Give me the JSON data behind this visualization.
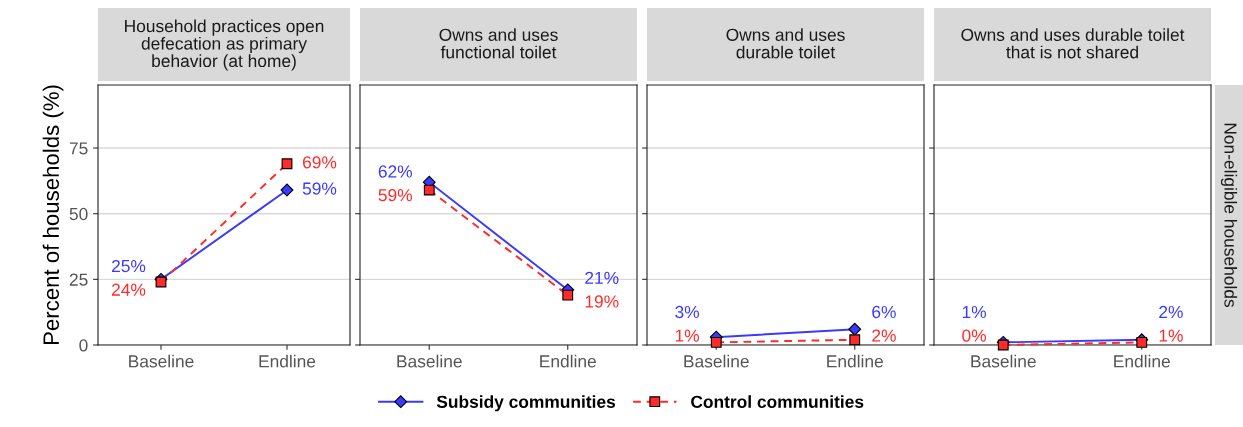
{
  "chart_data": [
    {
      "type": "line",
      "title": "Household practices open\ndefecation as primary\nbehavior (at home)",
      "ylabel": "Percent of households (%)",
      "categories": [
        "Baseline",
        "Endline"
      ],
      "ylim": [
        0,
        99
      ],
      "yticks": [
        0,
        25,
        50,
        75
      ],
      "grid": "y",
      "legend": "bottom",
      "series": [
        {
          "name": "Subsidy communities",
          "color": "#3a3aff",
          "values": [
            25,
            59
          ],
          "value_labels": [
            "25%",
            "59%"
          ],
          "marker": "diamond",
          "line_style": "solid"
        },
        {
          "name": "Control communities",
          "color": "#ff2a2a",
          "values": [
            24,
            69
          ],
          "value_labels": [
            "24%",
            "69%"
          ],
          "marker": "square",
          "line_style": "dashed"
        }
      ]
    },
    {
      "type": "line",
      "title": "Owns and uses\nfunctional toilet",
      "categories": [
        "Baseline",
        "Endline"
      ],
      "ylim": [
        0,
        99
      ],
      "yticks": [
        0,
        25,
        50,
        75
      ],
      "grid": "y",
      "tick_labels": "x",
      "series": [
        {
          "color": "#3a3aff",
          "values": [
            62,
            21
          ],
          "value_labels": [
            "62%",
            "21%"
          ],
          "marker": "diamond",
          "line_style": "solid"
        },
        {
          "color": "#ff2a2a",
          "values": [
            59,
            19
          ],
          "value_labels": [
            "59%",
            "19%"
          ],
          "marker": "square",
          "line_style": "dashed"
        }
      ]
    },
    {
      "type": "line",
      "title": "Owns and uses\ndurable toilet",
      "categories": [
        "Baseline",
        "Endline"
      ],
      "ylim": [
        0,
        99
      ],
      "yticks": [
        0,
        25,
        50,
        75
      ],
      "grid": "y",
      "tick_labels": "x",
      "series": [
        {
          "color": "#3a3aff",
          "values": [
            3,
            6
          ],
          "value_labels": [
            "3%",
            "6%"
          ],
          "marker": "diamond",
          "line_style": "solid"
        },
        {
          "color": "#ff2a2a",
          "values": [
            1,
            2
          ],
          "value_labels": [
            "1%",
            "2%"
          ],
          "marker": "square",
          "line_style": "dashed"
        }
      ]
    },
    {
      "type": "line",
      "title": "Owns and uses durable toilet\nthat is not shared",
      "categories": [
        "Baseline",
        "Endline"
      ],
      "ylim": [
        0,
        99
      ],
      "yticks": [
        0,
        25,
        50,
        75
      ],
      "grid": "y",
      "tick_labels": "x",
      "annotations": [
        "Non-eligible households"
      ],
      "series": [
        {
          "color": "#3a3aff",
          "values": [
            1,
            2
          ],
          "value_labels": [
            "1%",
            "2%"
          ],
          "marker": "diamond",
          "line_style": "solid"
        },
        {
          "color": "#ff2a2a",
          "values": [
            0,
            1
          ],
          "value_labels": [
            "0%",
            "1%"
          ],
          "marker": "square",
          "line_style": "dashed"
        }
      ]
    }
  ]
}
